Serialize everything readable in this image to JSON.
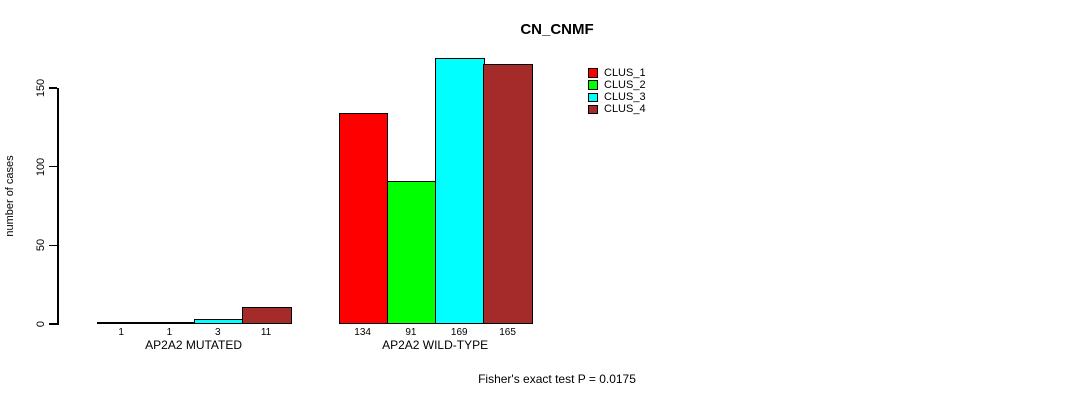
{
  "chart_data": {
    "type": "bar",
    "title": "CN_CNMF",
    "ylabel": "number of cases",
    "xlabel": "",
    "categories": [
      "AP2A2 MUTATED",
      "AP2A2 WILD-TYPE"
    ],
    "series": [
      {
        "name": "CLUS_1",
        "color": "#FF0000",
        "values": [
          1,
          134
        ]
      },
      {
        "name": "CLUS_2",
        "color": "#00FF00",
        "values": [
          1,
          91
        ]
      },
      {
        "name": "CLUS_3",
        "color": "#00FFFF",
        "values": [
          3,
          169
        ]
      },
      {
        "name": "CLUS_4",
        "color": "#A52A2A",
        "values": [
          11,
          165
        ]
      }
    ],
    "yticks": [
      0,
      50,
      100,
      150
    ],
    "ylim": [
      0,
      150
    ],
    "grid": false,
    "legend_position": "top-right",
    "bar_value_labels_shown": true,
    "annotation": "Fisher's exact test P = 0.0175"
  }
}
